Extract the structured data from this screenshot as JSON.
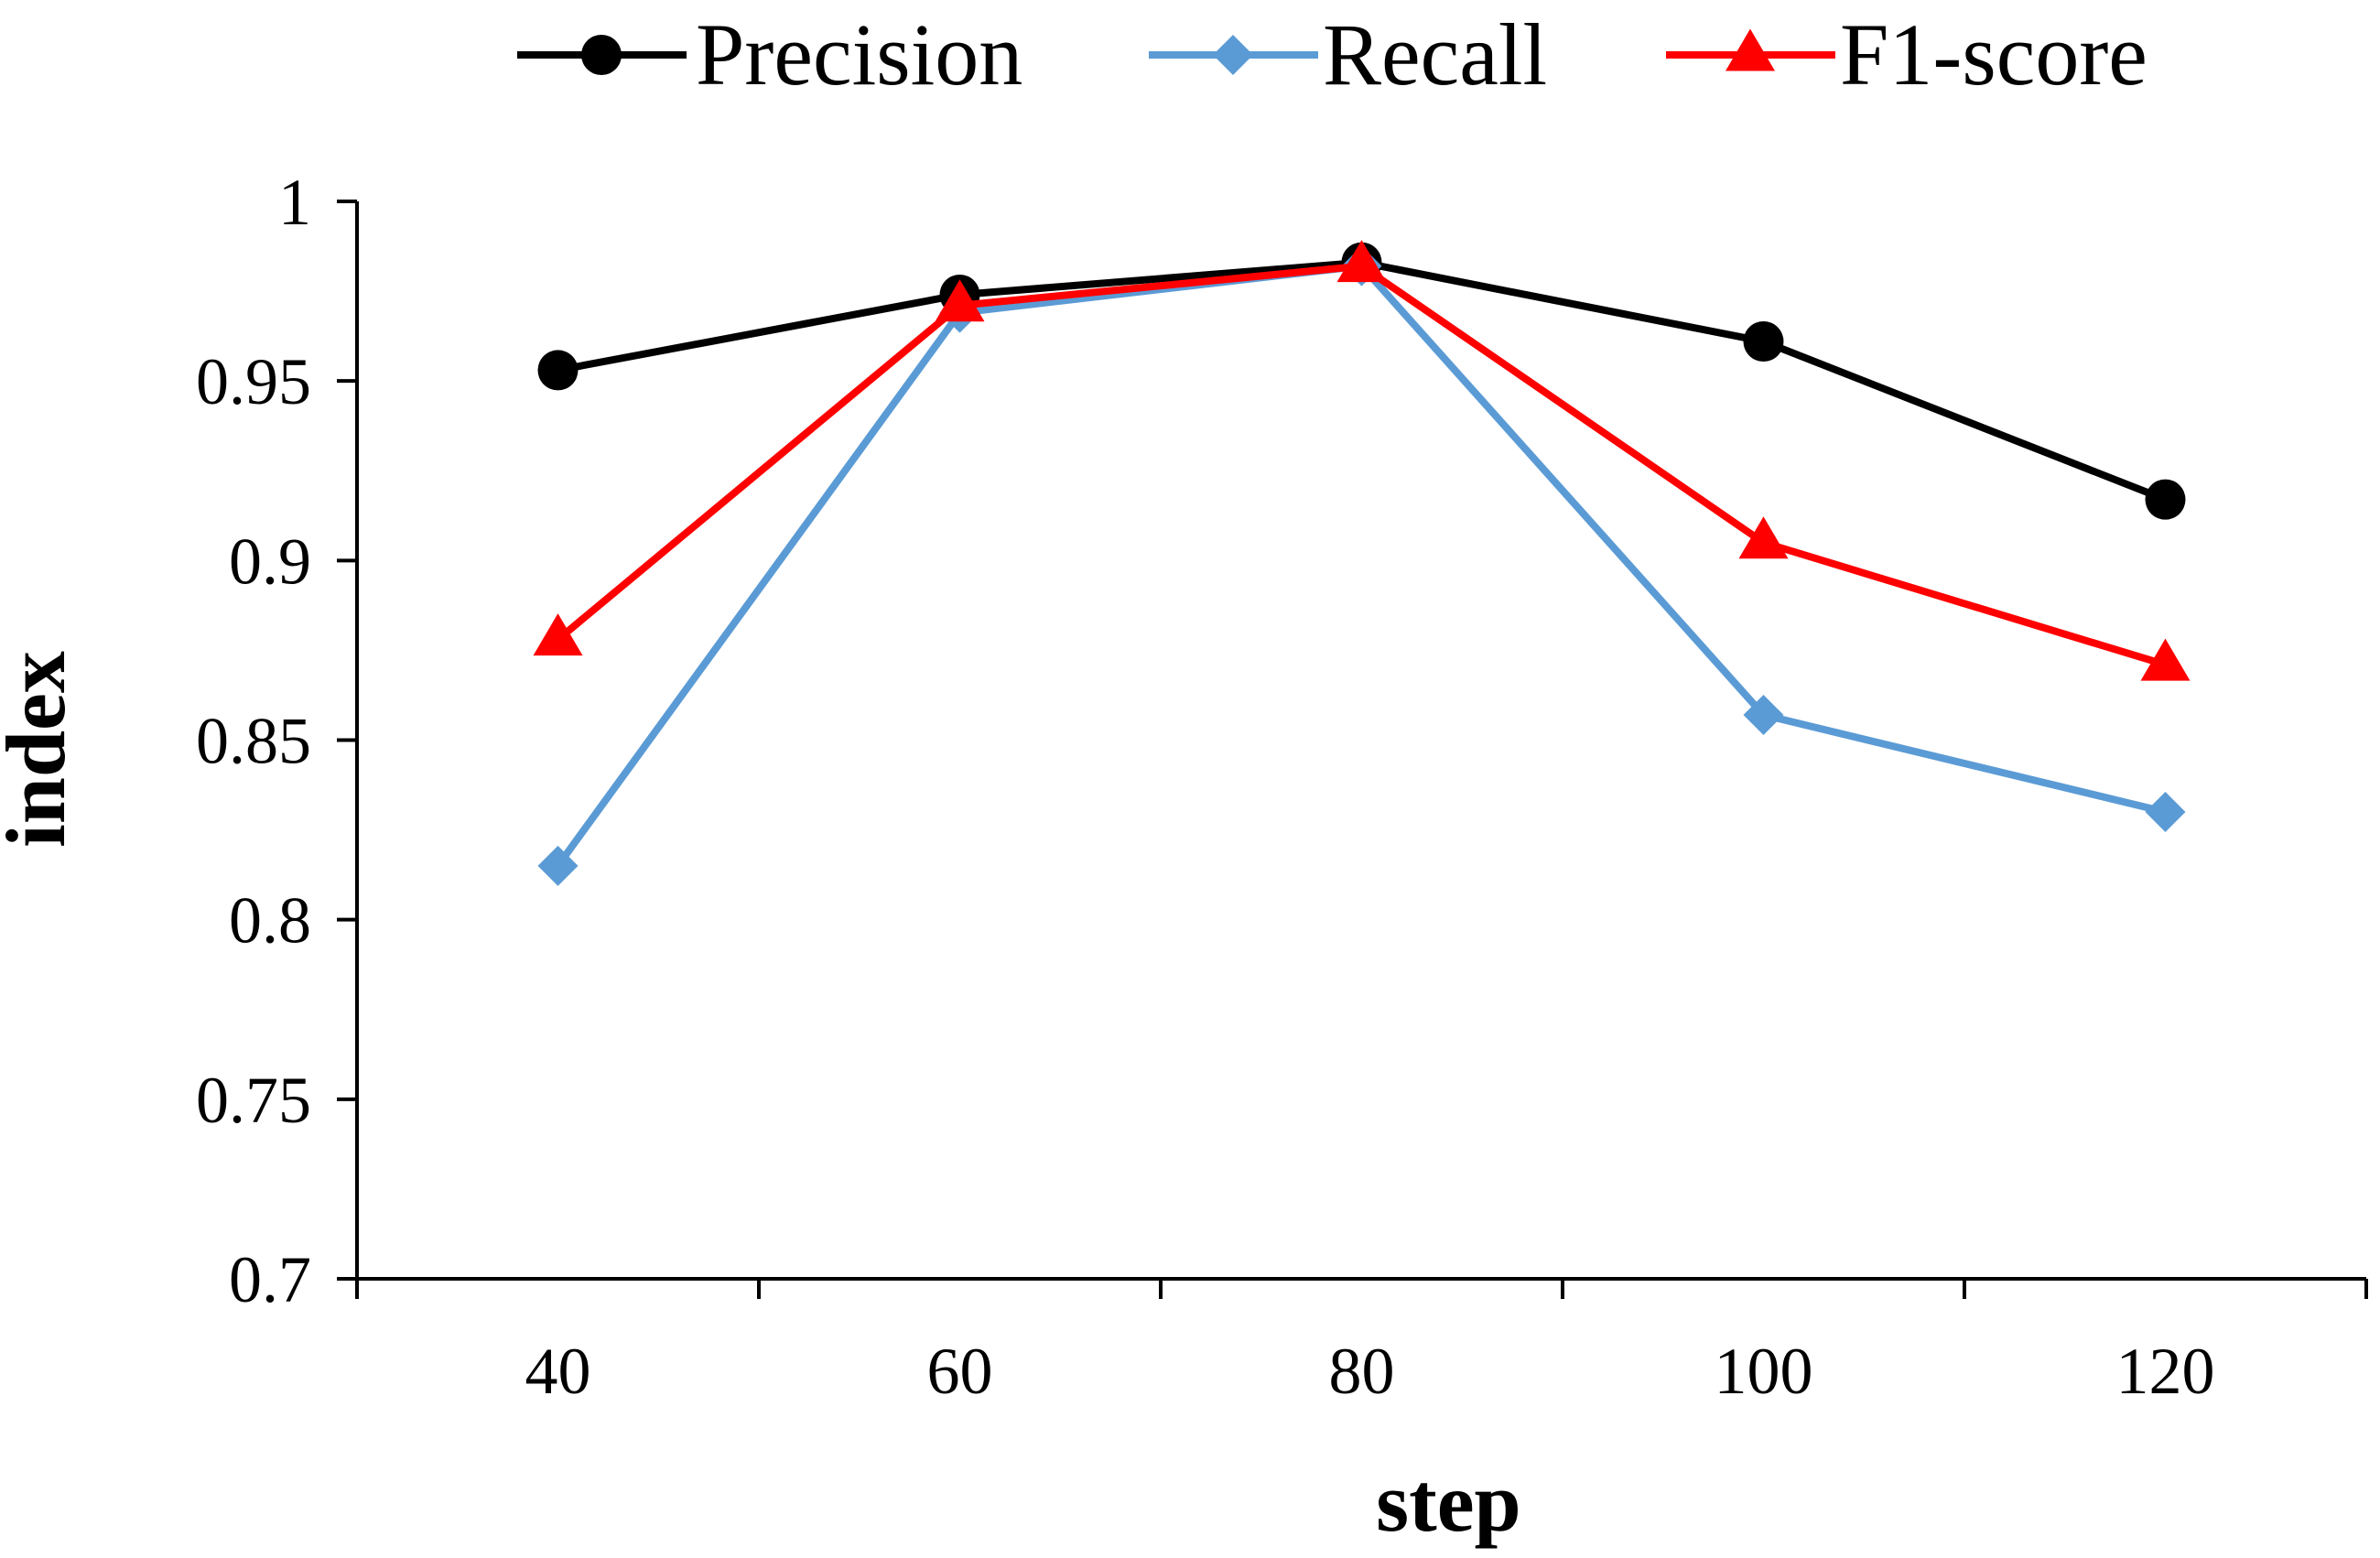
{
  "chart_data": {
    "type": "line",
    "title": "",
    "xlabel": "step",
    "ylabel": "index",
    "x": [
      40,
      60,
      80,
      100,
      120
    ],
    "x_tick_labels": [
      "40",
      "60",
      "80",
      "100",
      "120"
    ],
    "ylim": [
      0.7,
      1.0
    ],
    "y_ticks": [
      0.7,
      0.75,
      0.8,
      0.85,
      0.9,
      0.95,
      1.0
    ],
    "y_tick_labels": [
      "0.7",
      "0.75",
      "0.8",
      "0.85",
      "0.9",
      "0.95",
      "1"
    ],
    "grid": false,
    "legend_position": "top",
    "series": [
      {
        "name": "Precision",
        "color": "#000000",
        "marker": "circle",
        "values": [
          0.953,
          0.974,
          0.983,
          0.961,
          0.917
        ]
      },
      {
        "name": "Recall",
        "color": "#5b9bd5",
        "marker": "diamond",
        "values": [
          0.815,
          0.969,
          0.982,
          0.857,
          0.83
        ]
      },
      {
        "name": "F1-score",
        "color": "#ff0000",
        "marker": "triangle",
        "values": [
          0.878,
          0.971,
          0.982,
          0.905,
          0.871
        ]
      }
    ]
  }
}
